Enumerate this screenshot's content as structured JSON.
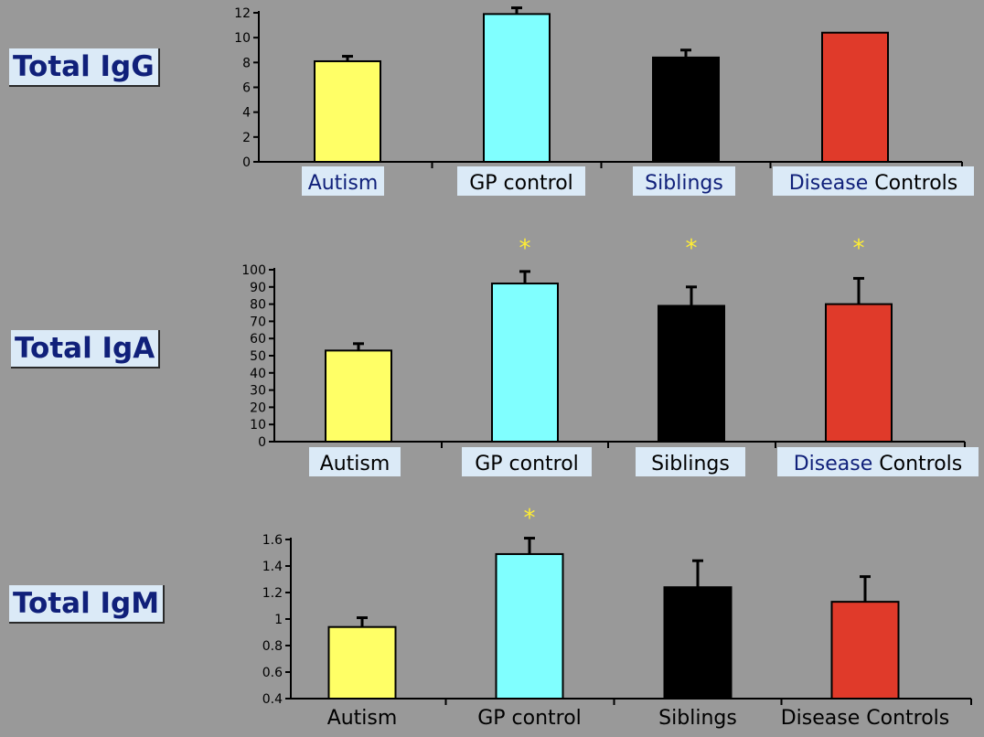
{
  "colors": {
    "background": "#999999",
    "label_box": "#dbeaf7",
    "title_text": "#10207a",
    "star": "#ffee33"
  },
  "panel_titles": [
    "Total IgG",
    "Total IgA",
    "Total IgM"
  ],
  "chart_data": [
    {
      "type": "bar",
      "title": "Total IgG",
      "categories": [
        "Autism",
        "GP control",
        "Siblings",
        "Disease Controls"
      ],
      "values": [
        8.1,
        11.9,
        8.4,
        10.4
      ],
      "errors": [
        0.4,
        0.5,
        0.6,
        0.0
      ],
      "bar_colors": [
        "#ffff66",
        "#80ffff",
        "#000000",
        "#e03a2a"
      ],
      "ylim": [
        0,
        12
      ],
      "yticks": [
        0,
        2,
        4,
        6,
        8,
        10,
        12
      ],
      "significance": [
        "",
        "",
        "",
        ""
      ],
      "label_boxes": [
        "Autism",
        "GP control",
        "Siblings",
        "Disease Controls"
      ],
      "disease_word_colored": true
    },
    {
      "type": "bar",
      "title": "Total IgA",
      "categories": [
        "Autism",
        "GP control",
        "Siblings",
        "Disease Controls"
      ],
      "values": [
        53,
        92,
        79,
        80
      ],
      "errors": [
        4,
        7,
        11,
        15
      ],
      "bar_colors": [
        "#ffff66",
        "#80ffff",
        "#000000",
        "#e03a2a"
      ],
      "ylim": [
        0,
        100
      ],
      "yticks": [
        0,
        10,
        20,
        30,
        40,
        50,
        60,
        70,
        80,
        90,
        100
      ],
      "significance": [
        "",
        "*",
        "*",
        "*"
      ],
      "label_boxes": [
        "Autism",
        "GP control",
        "Siblings",
        "Disease Controls"
      ],
      "disease_word_colored": true
    },
    {
      "type": "bar",
      "title": "Total IgM",
      "categories": [
        "Autism",
        "GP control",
        "Siblings",
        "Disease Controls"
      ],
      "values": [
        0.94,
        1.49,
        1.24,
        1.13
      ],
      "errors": [
        0.07,
        0.12,
        0.2,
        0.19
      ],
      "bar_colors": [
        "#ffff66",
        "#80ffff",
        "#000000",
        "#e03a2a"
      ],
      "ylim": [
        0.4,
        1.6
      ],
      "yticks": [
        0.4,
        0.6,
        0.8,
        1,
        1.2,
        1.4,
        1.6
      ],
      "significance": [
        "",
        "*",
        "",
        ""
      ],
      "label_boxes": [],
      "disease_word_colored": false
    }
  ]
}
